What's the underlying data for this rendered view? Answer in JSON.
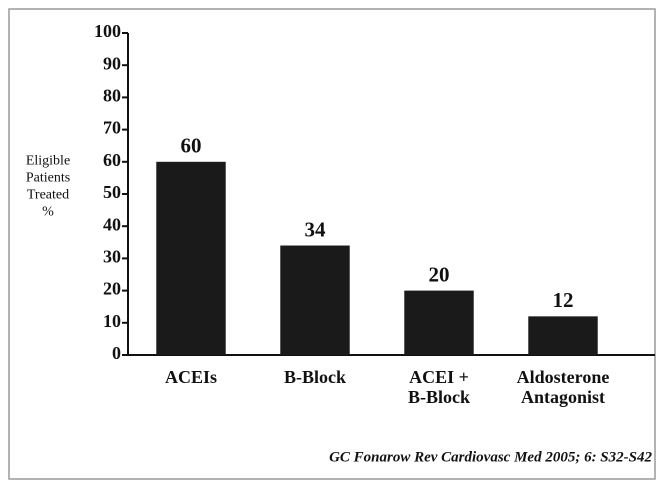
{
  "chart_data": {
    "type": "bar",
    "y_label": "Eligible\nPatients\nTreated\n%",
    "categories": [
      "ACEIs",
      "B-Block",
      "ACEI +\nB-Block",
      "Aldosterone\nAntagonist"
    ],
    "values": [
      60,
      34,
      20,
      12
    ],
    "color": "#1a1a1a",
    "ylim": [
      0,
      100
    ],
    "yticks": [
      0,
      10,
      20,
      30,
      40,
      50,
      60,
      70,
      80,
      90,
      100
    ],
    "source": "GC Fonarow Rev Cardiovasc Med 2005; 6: S32-S42"
  }
}
